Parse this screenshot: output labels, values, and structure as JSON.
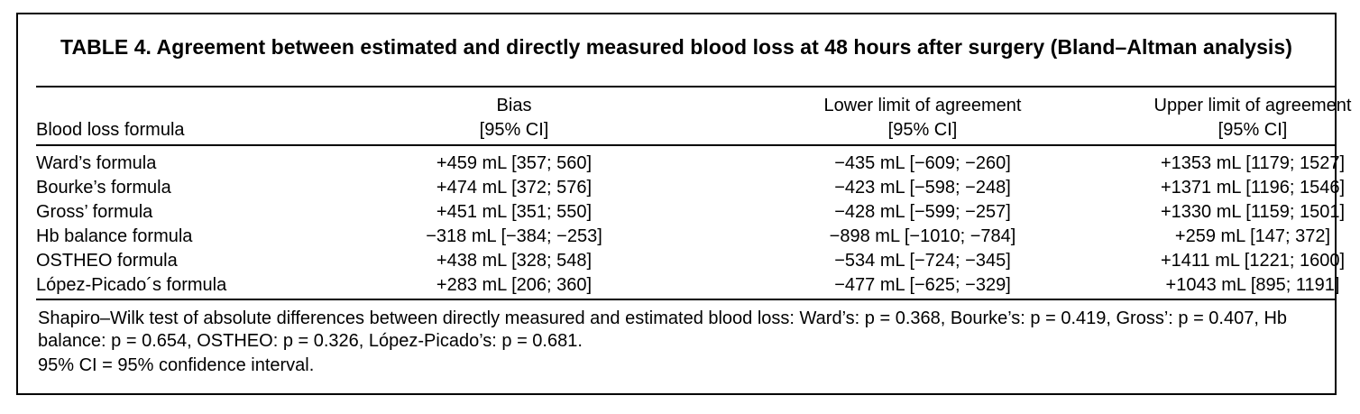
{
  "table": {
    "title": "TABLE 4. Agreement between estimated and directly measured blood loss at 48 hours after surgery (Bland–Altman analysis)",
    "headers": {
      "formula": "Blood loss formula",
      "bias": "Bias",
      "bias_ci": "[95% CI]",
      "lower": "Lower limit of agreement",
      "lower_ci": "[95% CI]",
      "upper": "Upper limit of agreement",
      "upper_ci": "[95% CI]"
    },
    "rows": [
      {
        "formula": "Ward’s formula",
        "bias": "+459 mL [357; 560]",
        "lower": "−435 mL [−609; −260]",
        "upper": "+1353 mL [1179; 1527]"
      },
      {
        "formula": "Bourke’s formula",
        "bias": "+474 mL [372; 576]",
        "lower": "−423 mL [−598; −248]",
        "upper": "+1371 mL [1196; 1546]"
      },
      {
        "formula": "Gross’ formula",
        "bias": "+451 mL [351; 550]",
        "lower": "−428 mL [−599; −257]",
        "upper": "+1330 mL [1159; 1501]"
      },
      {
        "formula": "Hb balance formula",
        "bias": "−318 mL [−384; −253]",
        "lower": "−898 mL [−1010; −784]",
        "upper": "+259 mL [147; 372]"
      },
      {
        "formula": "OSTHEO formula",
        "bias": "+438 mL [328; 548]",
        "lower": "−534 mL [−724; −345]",
        "upper": "+1411 mL [1221; 1600]"
      },
      {
        "formula": "López-Picado´s formula",
        "bias": "+283 mL [206; 360]",
        "lower": "−477 mL [−625; −329]",
        "upper": "+1043 mL [895; 1191]"
      }
    ],
    "footnotes": {
      "shapiro": "Shapiro–Wilk test of absolute differences between directly measured and estimated blood loss: Ward’s: p = 0.368, Bourke’s: p = 0.419, Gross’: p = 0.407, Hb balance: p = 0.654, OSTHEO: p = 0.326, López-Picado’s: p = 0.681.",
      "ci": "95% CI = 95% confidence interval."
    }
  }
}
